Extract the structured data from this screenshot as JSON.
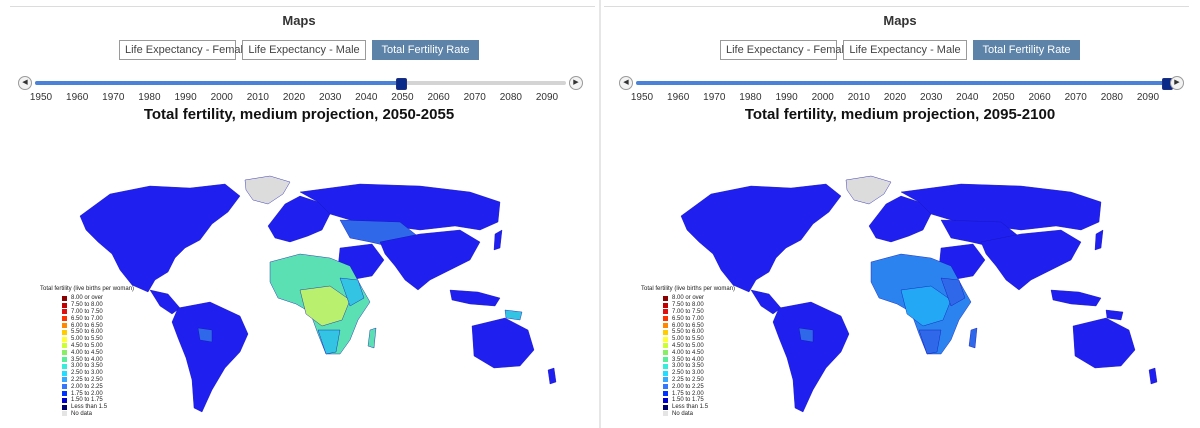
{
  "panels": [
    {
      "heading": "Maps",
      "buttons": [
        "Life Expectancy - Female",
        "Life Expectancy - Male",
        "Total Fertility Rate"
      ],
      "active_button": "Total Fertility Rate",
      "slider": {
        "min": 1950,
        "max": 2095,
        "value": 2050,
        "ticks": [
          "1950",
          "1960",
          "1970",
          "1980",
          "1990",
          "2000",
          "2010",
          "2020",
          "2030",
          "2040",
          "2050",
          "2060",
          "2070",
          "2080",
          "2090"
        ]
      },
      "map_title": "Total fertility, medium projection, 2050-2055"
    },
    {
      "heading": "Maps",
      "buttons": [
        "Life Expectancy - Female",
        "Life Expectancy - Male",
        "Total Fertility Rate"
      ],
      "active_button": "Total Fertility Rate",
      "slider": {
        "min": 1950,
        "max": 2095,
        "value": 2095,
        "ticks": [
          "1950",
          "1960",
          "1970",
          "1980",
          "1990",
          "2000",
          "2010",
          "2020",
          "2030",
          "2040",
          "2050",
          "2060",
          "2070",
          "2080",
          "2090"
        ]
      },
      "map_title": "Total fertility, medium projection, 2095-2100"
    }
  ],
  "legend": {
    "title": "Total fertility (live births per woman)",
    "items": [
      {
        "label": "8.00 or over",
        "color": "#8b0000"
      },
      {
        "label": "7.50 to 8.00",
        "color": "#c00000"
      },
      {
        "label": "7.00 to 7.50",
        "color": "#e01010"
      },
      {
        "label": "6.50 to 7.00",
        "color": "#ff3300"
      },
      {
        "label": "6.00 to 6.50",
        "color": "#ff8800"
      },
      {
        "label": "5.50 to 6.00",
        "color": "#ffcc00"
      },
      {
        "label": "5.00 to 5.50",
        "color": "#ffff33"
      },
      {
        "label": "4.50 to 5.00",
        "color": "#ccff33"
      },
      {
        "label": "4.00 to 4.50",
        "color": "#88ee66"
      },
      {
        "label": "3.50 to 4.00",
        "color": "#55ee99"
      },
      {
        "label": "3.00 to 3.50",
        "color": "#33eedd"
      },
      {
        "label": "2.50 to 3.00",
        "color": "#22ddff"
      },
      {
        "label": "2.25 to 2.50",
        "color": "#33aaff"
      },
      {
        "label": "2.00 to 2.25",
        "color": "#3377ff"
      },
      {
        "label": "1.75 to 2.00",
        "color": "#0033ff"
      },
      {
        "label": "1.50 to 1.75",
        "color": "#0000cc"
      },
      {
        "label": "Less than 1.5",
        "color": "#00006e"
      },
      {
        "label": "No data",
        "color": "#e4e4e4"
      }
    ]
  },
  "colors": {
    "land_low": "#1f1ff0",
    "land_mid": "#2f68e8",
    "greenland": "#dcdcdc",
    "africa_high": "#5be0b4",
    "africa_mid": "#33c4e4",
    "africa_yellow": "#b9f06d",
    "africa_right_mid": "#2b83f0",
    "africa_right_light": "#22a8f4"
  }
}
